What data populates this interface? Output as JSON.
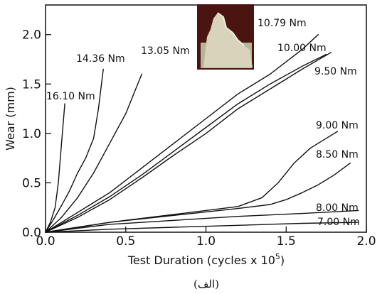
{
  "chart_data": {
    "type": "line",
    "xlabel": "Test Duration (cycles x 10",
    "xlabel_exp": "5",
    "xlabel_end": ")",
    "ylabel": "Wear (mm)",
    "xlim": [
      0,
      2.0
    ],
    "ylim": [
      0,
      2.3
    ],
    "xticks": [
      {
        "value": 0,
        "label": "0.0"
      },
      {
        "value": 0.5,
        "label": "0.5"
      },
      {
        "value": 1.0,
        "label": "1.0"
      },
      {
        "value": 1.5,
        "label": "1.5"
      },
      {
        "value": 2.0,
        "label": "2.0"
      }
    ],
    "yticks": [
      {
        "value": 0,
        "label": "0.0"
      },
      {
        "value": 0.5,
        "label": "0.5"
      },
      {
        "value": 1.0,
        "label": "1.0"
      },
      {
        "value": 1.5,
        "label": "1.5"
      },
      {
        "value": 2.0,
        "label": "2.0"
      }
    ],
    "grid": false,
    "caption": "(الف)",
    "series": [
      {
        "name": "16.10 Nm",
        "x": [
          0,
          0.03,
          0.06,
          0.08,
          0.1,
          0.12
        ],
        "y": [
          0,
          0.1,
          0.25,
          0.5,
          0.9,
          1.3
        ]
      },
      {
        "name": "14.36 Nm",
        "x": [
          0,
          0.05,
          0.1,
          0.15,
          0.2,
          0.25,
          0.3,
          0.33,
          0.36
        ],
        "y": [
          0,
          0.13,
          0.27,
          0.42,
          0.6,
          0.75,
          0.95,
          1.25,
          1.65
        ]
      },
      {
        "name": "13.05 Nm",
        "x": [
          0,
          0.1,
          0.2,
          0.3,
          0.4,
          0.5,
          0.55,
          0.6
        ],
        "y": [
          0,
          0.15,
          0.35,
          0.6,
          0.9,
          1.2,
          1.4,
          1.6
        ]
      },
      {
        "name": "10.79 Nm",
        "x": [
          0,
          0.2,
          0.4,
          0.6,
          0.8,
          1.0,
          1.2,
          1.4,
          1.6,
          1.7
        ],
        "y": [
          0,
          0.2,
          0.4,
          0.65,
          0.9,
          1.15,
          1.4,
          1.6,
          1.85,
          2.0
        ]
      },
      {
        "name": "10.00 Nm",
        "x": [
          0,
          0.2,
          0.4,
          0.6,
          0.8,
          1.0,
          1.2,
          1.4,
          1.6,
          1.75
        ],
        "y": [
          0,
          0.17,
          0.36,
          0.58,
          0.82,
          1.06,
          1.3,
          1.5,
          1.68,
          1.8
        ]
      },
      {
        "name": "9.50 Nm",
        "x": [
          0,
          0.2,
          0.4,
          0.6,
          0.8,
          1.0,
          1.2,
          1.4,
          1.6,
          1.78
        ],
        "y": [
          0,
          0.15,
          0.33,
          0.55,
          0.78,
          1.0,
          1.25,
          1.45,
          1.65,
          1.82
        ]
      },
      {
        "name": "9.00 Nm",
        "x": [
          0,
          0.4,
          0.8,
          1.2,
          1.35,
          1.45,
          1.55,
          1.65,
          1.75,
          1.82
        ],
        "y": [
          0,
          0.1,
          0.18,
          0.26,
          0.35,
          0.5,
          0.7,
          0.85,
          0.95,
          1.02
        ]
      },
      {
        "name": "8.50 Nm",
        "x": [
          0,
          0.4,
          0.8,
          1.2,
          1.4,
          1.5,
          1.6,
          1.7,
          1.8,
          1.9
        ],
        "y": [
          0,
          0.1,
          0.17,
          0.24,
          0.28,
          0.33,
          0.4,
          0.48,
          0.58,
          0.7
        ]
      },
      {
        "name": "8.00 Nm",
        "x": [
          0,
          0.4,
          0.8,
          1.2,
          1.6,
          1.95
        ],
        "y": [
          0,
          0.08,
          0.12,
          0.16,
          0.19,
          0.22
        ]
      },
      {
        "name": "7.00 Nm",
        "x": [
          0,
          0.4,
          0.8,
          1.2,
          1.6,
          1.95
        ],
        "y": [
          0,
          0.03,
          0.05,
          0.07,
          0.09,
          0.1
        ]
      }
    ]
  }
}
